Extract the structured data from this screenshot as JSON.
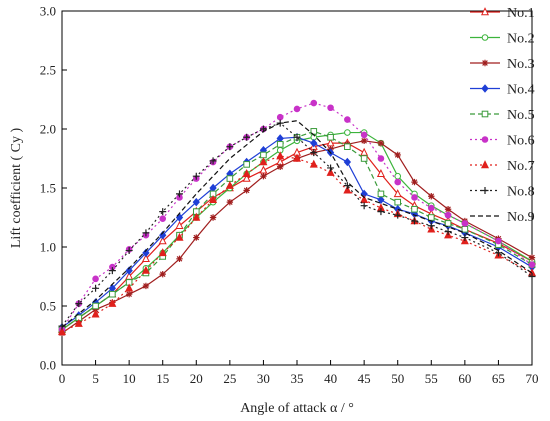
{
  "chart_data": {
    "type": "line",
    "xlabel": "Angle of attack   α  / °",
    "ylabel": "Lift coefficient ( Cy )",
    "xlim": [
      0,
      70
    ],
    "ylim": [
      0.0,
      3.0
    ],
    "xticks": [
      0,
      5,
      10,
      15,
      20,
      25,
      30,
      35,
      40,
      45,
      50,
      55,
      60,
      65,
      70
    ],
    "yticks": [
      0.0,
      0.5,
      1.0,
      1.5,
      2.0,
      2.5,
      3.0
    ],
    "xtick_labels": [
      "0",
      "5",
      "10",
      "15",
      "20",
      "25",
      "30",
      "35",
      "40",
      "45",
      "50",
      "55",
      "60",
      "65",
      "70"
    ],
    "ytick_labels": [
      "0.0",
      "0.5",
      "1.0",
      "1.5",
      "2.0",
      "2.5",
      "3.0"
    ],
    "grid": false,
    "legend_position": "right",
    "series": [
      {
        "name": "No.1",
        "color": "#e0201c",
        "dash": "solid",
        "marker": "triangle-open",
        "x": [
          0,
          2.5,
          5,
          7.5,
          10,
          12.5,
          15,
          17.5,
          20,
          22.5,
          25,
          27.5,
          30,
          32.5,
          35,
          37.5,
          40,
          42.5,
          45,
          47.5,
          50,
          52.5,
          55,
          57.5,
          60,
          65,
          70
        ],
        "y": [
          0.3,
          0.4,
          0.5,
          0.6,
          0.75,
          0.9,
          1.05,
          1.18,
          1.3,
          1.42,
          1.5,
          1.58,
          1.65,
          1.72,
          1.8,
          1.85,
          1.88,
          1.88,
          1.8,
          1.62,
          1.45,
          1.35,
          1.28,
          1.22,
          1.15,
          1.03,
          0.88
        ]
      },
      {
        "name": "No.2",
        "color": "#3cb43c",
        "dash": "solid",
        "marker": "circle-open",
        "x": [
          0,
          2.5,
          5,
          7.5,
          10,
          12.5,
          15,
          17.5,
          20,
          22.5,
          25,
          27.5,
          30,
          32.5,
          35,
          37.5,
          40,
          42.5,
          45,
          47.5,
          50,
          52.5,
          55,
          57.5,
          60,
          65,
          70
        ],
        "y": [
          0.3,
          0.4,
          0.5,
          0.6,
          0.7,
          0.82,
          0.95,
          1.1,
          1.25,
          1.38,
          1.5,
          1.62,
          1.72,
          1.82,
          1.9,
          1.93,
          1.95,
          1.97,
          1.97,
          1.88,
          1.6,
          1.45,
          1.35,
          1.27,
          1.2,
          1.05,
          0.88
        ]
      },
      {
        "name": "No.3",
        "color": "#a01e1e",
        "dash": "solid",
        "marker": "star",
        "x": [
          0,
          2.5,
          5,
          7.5,
          10,
          12.5,
          15,
          17.5,
          20,
          22.5,
          25,
          27.5,
          30,
          32.5,
          35,
          37.5,
          40,
          42.5,
          45,
          47.5,
          50,
          52.5,
          55,
          57.5,
          60,
          65,
          70
        ],
        "y": [
          0.27,
          0.37,
          0.47,
          0.53,
          0.6,
          0.67,
          0.77,
          0.9,
          1.08,
          1.25,
          1.38,
          1.48,
          1.6,
          1.68,
          1.75,
          1.8,
          1.83,
          1.87,
          1.9,
          1.88,
          1.78,
          1.55,
          1.43,
          1.32,
          1.22,
          1.07,
          0.91
        ]
      },
      {
        "name": "No.4",
        "color": "#1f3fd6",
        "dash": "solid",
        "marker": "diamond",
        "x": [
          0,
          2.5,
          5,
          7.5,
          10,
          12.5,
          15,
          17.5,
          20,
          22.5,
          25,
          27.5,
          30,
          32.5,
          35,
          37.5,
          40,
          42.5,
          45,
          47.5,
          50,
          52.5,
          55,
          57.5,
          60,
          65,
          70
        ],
        "y": [
          0.32,
          0.42,
          0.53,
          0.65,
          0.8,
          0.95,
          1.1,
          1.25,
          1.38,
          1.5,
          1.62,
          1.72,
          1.82,
          1.92,
          1.93,
          1.88,
          1.8,
          1.72,
          1.45,
          1.4,
          1.32,
          1.28,
          1.22,
          1.18,
          1.12,
          1.0,
          0.83
        ]
      },
      {
        "name": "No.5",
        "color": "#3a9a3a",
        "dash": "5,3",
        "marker": "square-open",
        "x": [
          0,
          2.5,
          5,
          7.5,
          10,
          12.5,
          15,
          17.5,
          20,
          22.5,
          25,
          27.5,
          30,
          32.5,
          35,
          37.5,
          40,
          42.5,
          45,
          47.5,
          50,
          52.5,
          55,
          57.5,
          60,
          65,
          70
        ],
        "y": [
          0.3,
          0.4,
          0.5,
          0.6,
          0.7,
          0.78,
          0.92,
          1.1,
          1.3,
          1.45,
          1.58,
          1.7,
          1.78,
          1.87,
          1.93,
          1.98,
          1.93,
          1.85,
          1.75,
          1.45,
          1.38,
          1.32,
          1.25,
          1.2,
          1.15,
          1.02,
          0.85
        ]
      },
      {
        "name": "No.6",
        "color": "#c832c8",
        "dash": "2,3",
        "marker": "circle-filled",
        "x": [
          0,
          2.5,
          5,
          7.5,
          10,
          12.5,
          15,
          17.5,
          20,
          22.5,
          25,
          27.5,
          30,
          32.5,
          35,
          37.5,
          40,
          42.5,
          45,
          47.5,
          50,
          52.5,
          55,
          57.5,
          60,
          65,
          70
        ],
        "y": [
          0.3,
          0.52,
          0.73,
          0.83,
          0.98,
          1.1,
          1.24,
          1.42,
          1.58,
          1.72,
          1.85,
          1.93,
          2.0,
          2.1,
          2.17,
          2.22,
          2.18,
          2.08,
          1.95,
          1.75,
          1.55,
          1.42,
          1.33,
          1.27,
          1.2,
          1.05,
          0.85
        ]
      },
      {
        "name": "No.7",
        "color": "#e0201c",
        "dash": "2,3",
        "marker": "triangle-filled",
        "x": [
          0,
          2.5,
          5,
          7.5,
          10,
          12.5,
          15,
          17.5,
          20,
          22.5,
          25,
          27.5,
          30,
          32.5,
          35,
          37.5,
          40,
          42.5,
          45,
          47.5,
          50,
          52.5,
          55,
          57.5,
          60,
          65,
          70
        ],
        "y": [
          0.28,
          0.35,
          0.43,
          0.52,
          0.65,
          0.8,
          0.95,
          1.08,
          1.25,
          1.4,
          1.52,
          1.62,
          1.72,
          1.77,
          1.75,
          1.7,
          1.63,
          1.48,
          1.4,
          1.33,
          1.28,
          1.22,
          1.15,
          1.1,
          1.05,
          0.93,
          0.78
        ]
      },
      {
        "name": "No.8",
        "color": "#222222",
        "dash": "2,3",
        "marker": "plus",
        "x": [
          0,
          2.5,
          5,
          7.5,
          10,
          12.5,
          15,
          17.5,
          20,
          22.5,
          25,
          27.5,
          30,
          32.5,
          35,
          37.5,
          40,
          42.5,
          45,
          47.5,
          50,
          52.5,
          55,
          57.5,
          60,
          65,
          70
        ],
        "y": [
          0.33,
          0.52,
          0.65,
          0.8,
          0.97,
          1.12,
          1.3,
          1.45,
          1.6,
          1.73,
          1.85,
          1.93,
          2.0,
          2.05,
          1.93,
          1.8,
          1.67,
          1.52,
          1.35,
          1.3,
          1.27,
          1.22,
          1.18,
          1.13,
          1.08,
          0.95,
          0.75
        ]
      },
      {
        "name": "No.9",
        "color": "#111111",
        "dash": "5,3",
        "marker": "none",
        "x": [
          0,
          5,
          10,
          15,
          20,
          25,
          30,
          32.5,
          35,
          37.5,
          40,
          42.5,
          45,
          50,
          55,
          60,
          65,
          70
        ],
        "y": [
          0.32,
          0.55,
          0.82,
          1.12,
          1.45,
          1.75,
          1.98,
          2.05,
          2.07,
          1.95,
          1.8,
          1.55,
          1.42,
          1.32,
          1.22,
          1.12,
          0.97,
          0.78
        ]
      }
    ]
  }
}
